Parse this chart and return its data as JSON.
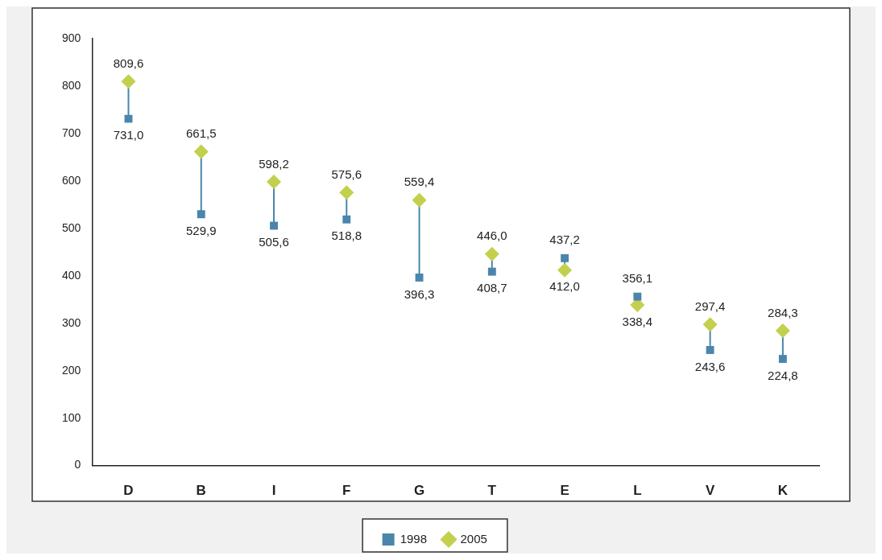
{
  "chart_data": {
    "type": "scatter",
    "categories": [
      "D",
      "B",
      "I",
      "F",
      "G",
      "T",
      "E",
      "L",
      "V",
      "K"
    ],
    "series": [
      {
        "name": "1998",
        "color": "#4a86ab",
        "marker": "square",
        "values": [
          731.0,
          529.9,
          505.6,
          518.8,
          396.3,
          408.7,
          437.2,
          356.1,
          243.6,
          224.8
        ],
        "value_labels": [
          "731,0",
          "529,9",
          "505,6",
          "518,8",
          "396,3",
          "408,7",
          "437,2",
          "356,1",
          "243,6",
          "224,8"
        ]
      },
      {
        "name": "2005",
        "color": "#c3d04e",
        "marker": "diamond",
        "values": [
          809.6,
          661.5,
          598.2,
          575.6,
          559.4,
          446.0,
          412.0,
          338.4,
          297.4,
          284.3
        ],
        "value_labels": [
          "809,6",
          "661,5",
          "598,2",
          "575,6",
          "559,4",
          "446,0",
          "412,0",
          "338,4",
          "297,4",
          "284,3"
        ]
      }
    ],
    "ylim": [
      0,
      900
    ],
    "yticks": [
      0,
      100,
      200,
      300,
      400,
      500,
      600,
      700,
      800,
      900
    ],
    "grid": false,
    "legend": "bottom"
  }
}
